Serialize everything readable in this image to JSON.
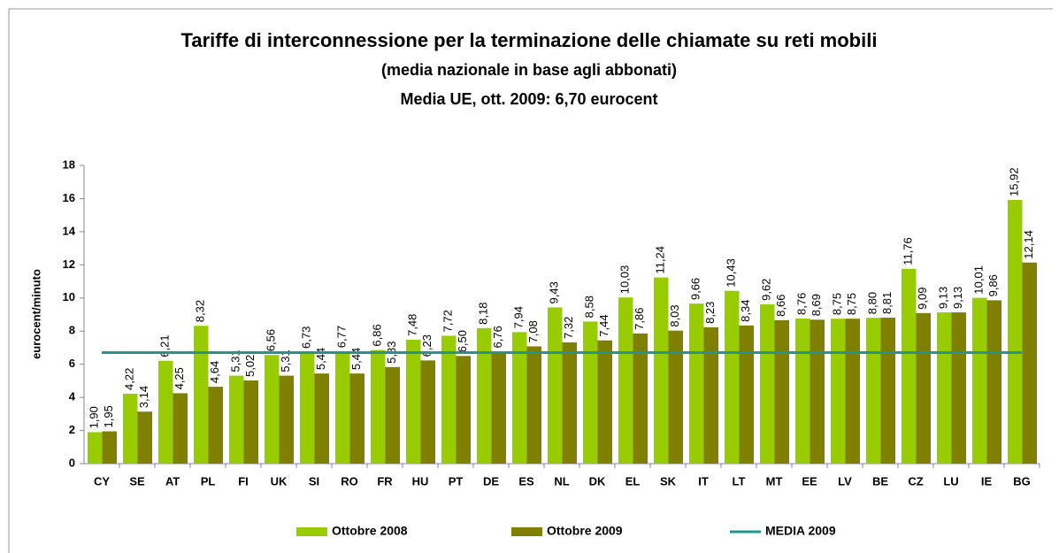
{
  "chart_data": {
    "type": "bar",
    "title": "Tariffe di interconnessione per la terminazione delle chiamate su reti mobili",
    "subtitle": "(media nazionale in base agli abbonati)",
    "subtitle2": "Media UE, ott. 2009:  6,70 eurocent",
    "y_label": "eurocent/minuto",
    "categories": [
      "CY",
      "SE",
      "AT",
      "PL",
      "FI",
      "UK",
      "SI",
      "RO",
      "FR",
      "HU",
      "PT",
      "DE",
      "ES",
      "NL",
      "DK",
      "EL",
      "SK",
      "IT",
      "LT",
      "MT",
      "EE",
      "LV",
      "BE",
      "CZ",
      "LU",
      "IE",
      "BG"
    ],
    "series": [
      {
        "name": "Ottobre 2008",
        "color": "#99cc00",
        "values": [
          1.9,
          4.22,
          6.21,
          8.32,
          5.31,
          6.56,
          6.73,
          6.77,
          6.86,
          7.48,
          7.72,
          8.18,
          7.94,
          9.43,
          8.58,
          10.03,
          11.24,
          9.66,
          10.43,
          9.62,
          8.76,
          8.75,
          8.8,
          11.76,
          9.13,
          10.01,
          15.92
        ],
        "value_labels": [
          "1,90",
          "4,22",
          "6,21",
          "8,32",
          "5,31",
          "6,56",
          "6,73",
          "6,77",
          "6,86",
          "7,48",
          "7,72",
          "8,18",
          "7,94",
          "9,43",
          "8,58",
          "10,03",
          "11,24",
          "9,66",
          "10,43",
          "9,62",
          "8,76",
          "8,75",
          "8,80",
          "11,76",
          "9,13",
          "10,01",
          "15,92"
        ]
      },
      {
        "name": "Ottobre 2009",
        "color": "#808000",
        "values": [
          1.95,
          3.14,
          4.25,
          4.64,
          5.02,
          5.31,
          5.44,
          5.44,
          5.83,
          6.23,
          6.5,
          6.76,
          7.08,
          7.32,
          7.44,
          7.86,
          8.03,
          8.23,
          8.34,
          8.66,
          8.69,
          8.75,
          8.81,
          9.09,
          9.13,
          9.86,
          12.14
        ],
        "value_labels": [
          "1,95",
          "3,14",
          "4,25",
          "4,64",
          "5,02",
          "5,31",
          "5,44",
          "5,44",
          "5,83",
          "6,23",
          "6,50",
          "6,76",
          "7,08",
          "7,32",
          "7,44",
          "7,86",
          "8,03",
          "8,23",
          "8,34",
          "8,66",
          "8,69",
          "8,75",
          "8,81",
          "9,09",
          "9,13",
          "9,86",
          "12,14"
        ]
      }
    ],
    "reference_line": {
      "name": "MEDIA 2009",
      "value": 6.7,
      "color": "#1b9990"
    },
    "ylim": [
      0,
      18
    ],
    "yticks": [
      0,
      2,
      4,
      6,
      8,
      10,
      12,
      14,
      16,
      18
    ]
  }
}
